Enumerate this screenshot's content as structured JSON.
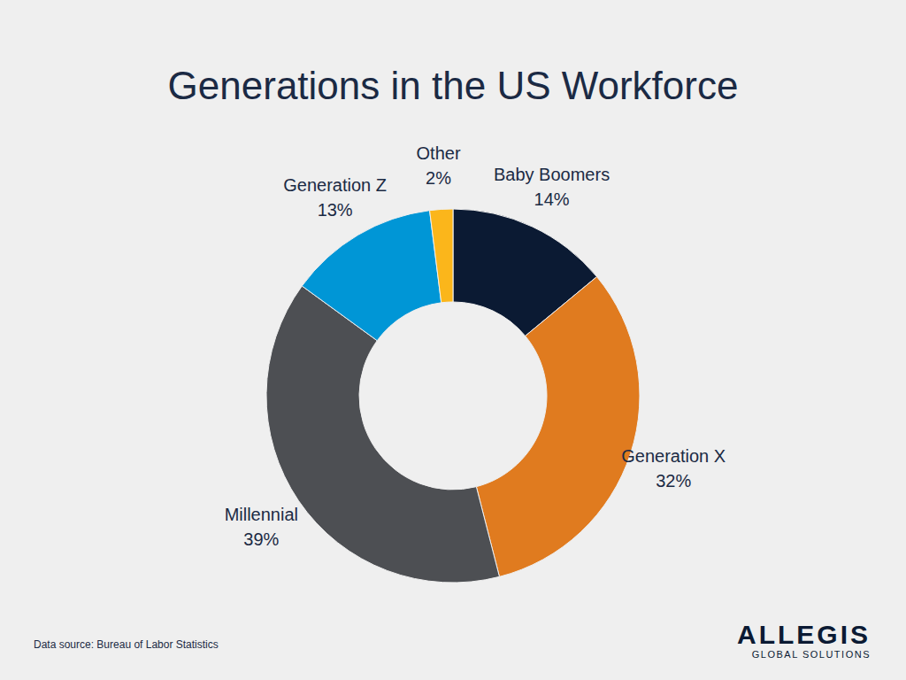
{
  "chart_data": {
    "type": "pie",
    "title": "Generations in the US Workforce",
    "categories": [
      "Baby Boomers",
      "Generation X",
      "Millennial",
      "Generation Z",
      "Other"
    ],
    "values": [
      14,
      32,
      39,
      13,
      2
    ],
    "value_labels": [
      "14%",
      "32%",
      "39%",
      "13%",
      "2%"
    ],
    "colors": [
      "#0b1a33",
      "#e07b1f",
      "#4d4f53",
      "#0096d6",
      "#fbb61b"
    ],
    "data_labels": true
  },
  "footer": {
    "source": "Data source: Bureau of Labor Statistics",
    "logo": "ALLEGIS",
    "logo_tagline": "GLOBAL SOLUTIONS"
  }
}
